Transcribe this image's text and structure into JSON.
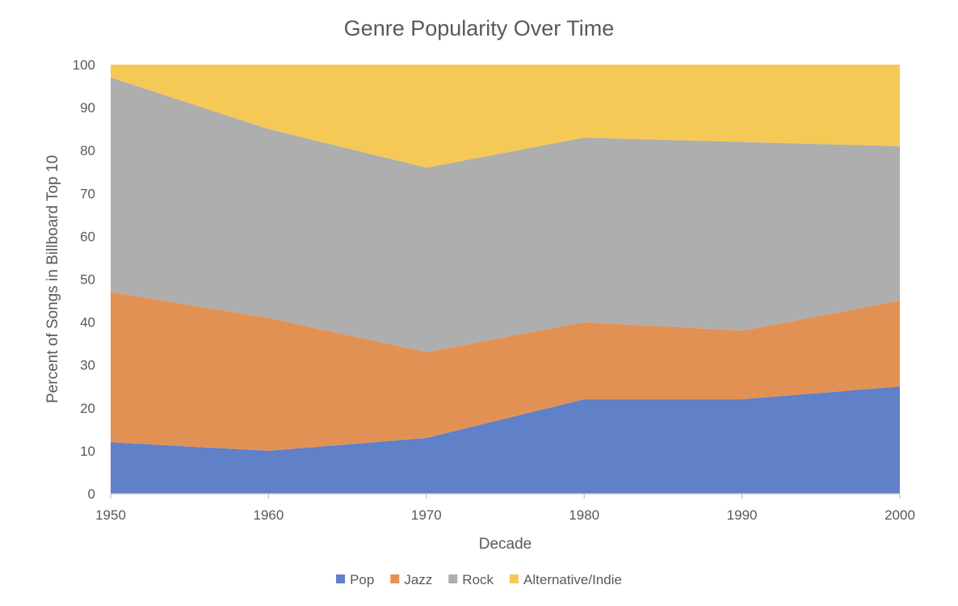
{
  "chart_data": {
    "type": "area",
    "stacked": true,
    "title": "Genre Popularity Over Time",
    "xlabel": "Decade",
    "ylabel": "Percent of Songs in Billboard Top 10",
    "x": [
      "1950",
      "1960",
      "1970",
      "1980",
      "1990",
      "2000"
    ],
    "ylim": [
      0,
      100
    ],
    "yticks": [
      0,
      10,
      20,
      30,
      40,
      50,
      60,
      70,
      80,
      90,
      100
    ],
    "grid": false,
    "legend_position": "bottom",
    "series": [
      {
        "name": "Pop",
        "values": [
          12,
          10,
          13,
          22,
          22,
          25
        ],
        "color": "#6080C8"
      },
      {
        "name": "Jazz",
        "values": [
          35,
          31,
          20,
          18,
          16,
          20
        ],
        "color": "#E29155"
      },
      {
        "name": "Rock",
        "values": [
          50,
          44,
          43,
          43,
          44,
          36
        ],
        "color": "#AEAEAE"
      },
      {
        "name": "Alternative/Indie",
        "values": [
          3,
          15,
          24,
          17,
          18,
          19
        ],
        "color": "#F5C955"
      }
    ]
  }
}
